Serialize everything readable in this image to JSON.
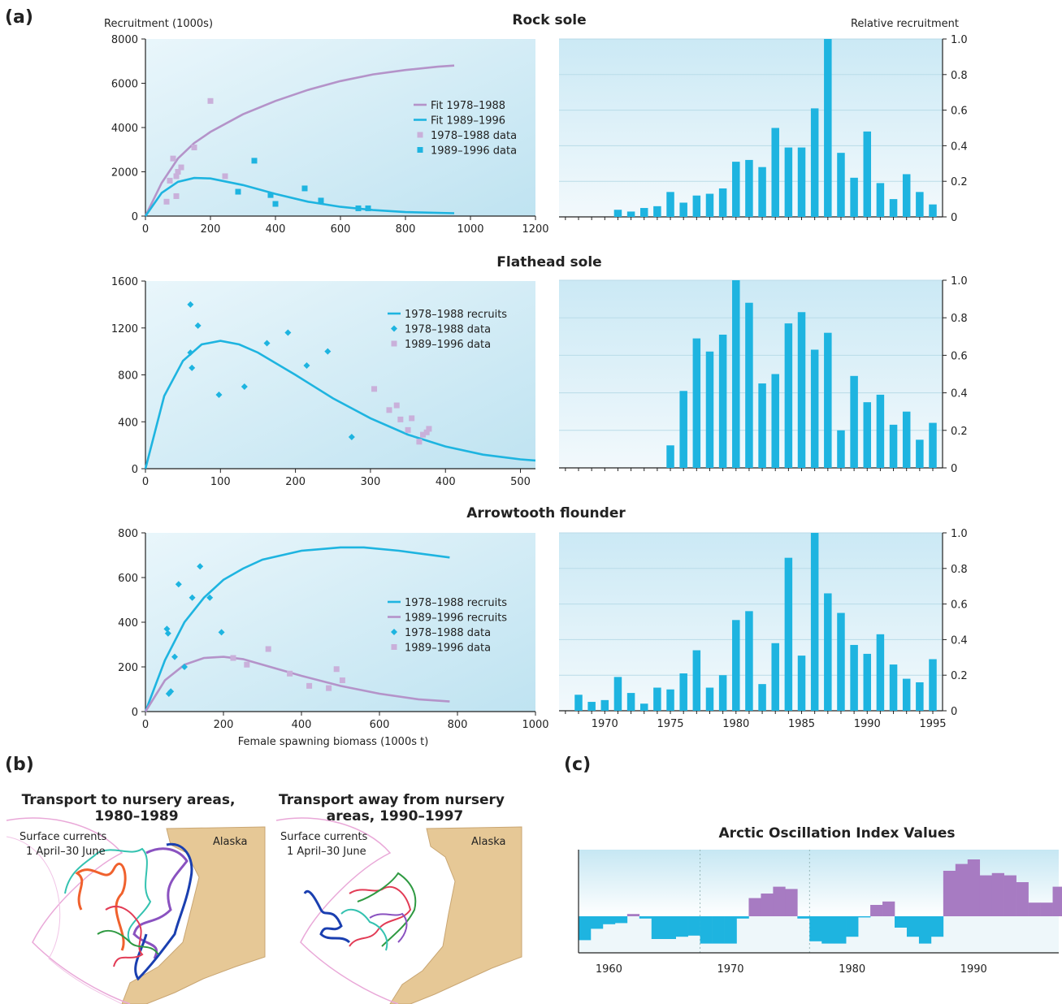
{
  "panels": {
    "a": "(a)",
    "b": "(b)",
    "c": "(c)"
  },
  "colors": {
    "cyan": "#1eb4e0",
    "purple": "#b493c9",
    "ao_purple": "#a77bc2",
    "land": "#e6c896",
    "sea_line": "#e9a8d8"
  },
  "chart_data": [
    {
      "id": "rock_scatter",
      "type": "scatter",
      "title": "Rock sole",
      "ylabel": "Recruitment (1000s)",
      "xlabel": "",
      "xlim": [
        0,
        1200
      ],
      "ylim": [
        0,
        8000
      ],
      "xticks": [
        0,
        200,
        400,
        600,
        800,
        1000,
        1200
      ],
      "yticks": [
        0,
        2000,
        4000,
        6000,
        8000
      ],
      "legend": [
        {
          "label": "Fit 1978–1988",
          "kind": "line",
          "color": "#b493c9"
        },
        {
          "label": "Fit 1989–1996",
          "kind": "line",
          "color": "#1eb4e0"
        },
        {
          "label": "1978–1988 data",
          "kind": "square",
          "color": "#c9b0da"
        },
        {
          "label": "1989–1996 data",
          "kind": "square",
          "color": "#1eb4e0"
        }
      ],
      "series": [
        {
          "kind": "line",
          "color": "#b493c9",
          "x": [
            0,
            50,
            100,
            150,
            200,
            300,
            400,
            500,
            600,
            700,
            800,
            900,
            950
          ],
          "y": [
            0,
            1500,
            2600,
            3300,
            3800,
            4600,
            5200,
            5700,
            6100,
            6400,
            6600,
            6750,
            6800
          ]
        },
        {
          "kind": "line",
          "color": "#1eb4e0",
          "x": [
            0,
            50,
            100,
            150,
            200,
            300,
            400,
            500,
            600,
            700,
            800,
            950
          ],
          "y": [
            0,
            1050,
            1550,
            1720,
            1700,
            1400,
            1000,
            650,
            420,
            270,
            180,
            130
          ]
        },
        {
          "kind": "square",
          "color": "#c9b0da",
          "x": [
            65,
            75,
            85,
            95,
            100,
            110,
            150,
            200,
            245,
            95
          ],
          "y": [
            650,
            1600,
            2600,
            1800,
            2000,
            2200,
            3100,
            5200,
            1800,
            900
          ]
        },
        {
          "kind": "square",
          "color": "#1eb4e0",
          "x": [
            285,
            335,
            385,
            400,
            490,
            540,
            655,
            685
          ],
          "y": [
            1100,
            2500,
            950,
            550,
            1250,
            700,
            350,
            350
          ]
        }
      ]
    },
    {
      "id": "rock_bars",
      "type": "bar",
      "ylabel": "Relative recruitment",
      "xlim": [
        1967,
        1995.5
      ],
      "ylim": [
        0,
        1.0
      ],
      "yticks": [
        0,
        0.2,
        0.4,
        0.6,
        0.8,
        1.0
      ],
      "yticklabels": [
        "0",
        "0.2",
        "0.4",
        "0.6",
        "0.8",
        "1.0"
      ],
      "x": [
        1967,
        1968,
        1969,
        1970,
        1971,
        1972,
        1973,
        1974,
        1975,
        1976,
        1977,
        1978,
        1979,
        1980,
        1981,
        1982,
        1983,
        1984,
        1985,
        1986,
        1987,
        1988,
        1989,
        1990,
        1991,
        1992,
        1993,
        1994,
        1995
      ],
      "values": [
        0,
        0,
        0,
        0,
        0.04,
        0.03,
        0.05,
        0.06,
        0.14,
        0.08,
        0.12,
        0.13,
        0.16,
        0.31,
        0.32,
        0.28,
        0.5,
        0.39,
        0.39,
        0.61,
        1.0,
        0.36,
        0.22,
        0.48,
        0.19,
        0.1,
        0.24,
        0.14,
        0.07
      ]
    },
    {
      "id": "flathead_scatter",
      "type": "scatter",
      "title": "Flathead sole",
      "xlim": [
        0,
        520
      ],
      "ylim": [
        0,
        1600
      ],
      "xticks": [
        0,
        100,
        200,
        300,
        400,
        500
      ],
      "yticks": [
        0,
        400,
        800,
        1200,
        1600
      ],
      "legend": [
        {
          "label": "1978–1988 recruits",
          "kind": "line",
          "color": "#1eb4e0"
        },
        {
          "label": "1978–1988 data",
          "kind": "diamond",
          "color": "#1eb4e0"
        },
        {
          "label": "1989–1996 data",
          "kind": "square",
          "color": "#c9b0da"
        }
      ],
      "series": [
        {
          "kind": "line",
          "color": "#1eb4e0",
          "x": [
            0,
            25,
            50,
            75,
            100,
            125,
            150,
            200,
            250,
            300,
            350,
            400,
            450,
            500,
            520
          ],
          "y": [
            0,
            620,
            920,
            1060,
            1090,
            1060,
            990,
            800,
            600,
            430,
            290,
            190,
            120,
            80,
            70
          ]
        },
        {
          "kind": "diamond",
          "color": "#1eb4e0",
          "x": [
            60,
            60,
            62,
            70,
            98,
            132,
            162,
            190,
            215,
            243,
            275
          ],
          "y": [
            1400,
            990,
            860,
            1220,
            630,
            700,
            1070,
            1160,
            880,
            1000,
            270
          ]
        },
        {
          "kind": "square",
          "color": "#c9b0da",
          "x": [
            305,
            325,
            335,
            340,
            350,
            355,
            365,
            370,
            375,
            378
          ],
          "y": [
            680,
            500,
            540,
            420,
            330,
            430,
            230,
            290,
            310,
            340
          ]
        }
      ]
    },
    {
      "id": "flathead_bars",
      "type": "bar",
      "xlim": [
        1967,
        1995.5
      ],
      "ylim": [
        0,
        1.0
      ],
      "yticks": [
        0,
        0.2,
        0.4,
        0.6,
        0.8,
        1.0
      ],
      "yticklabels": [
        "0",
        "0.2",
        "0.4",
        "0.6",
        "0.8",
        "1.0"
      ],
      "x": [
        1967,
        1968,
        1969,
        1970,
        1971,
        1972,
        1973,
        1974,
        1975,
        1976,
        1977,
        1978,
        1979,
        1980,
        1981,
        1982,
        1983,
        1984,
        1985,
        1986,
        1987,
        1988,
        1989,
        1990,
        1991,
        1992,
        1993,
        1994,
        1995
      ],
      "values": [
        0,
        0,
        0,
        0,
        0,
        0,
        0,
        0,
        0.12,
        0.41,
        0.69,
        0.62,
        0.71,
        1.0,
        0.88,
        0.45,
        0.5,
        0.77,
        0.83,
        0.63,
        0.72,
        0.2,
        0.49,
        0.35,
        0.39,
        0.23,
        0.3,
        0.15,
        0.24
      ]
    },
    {
      "id": "arrowtooth_scatter",
      "type": "scatter",
      "title": "Arrowtooth flounder",
      "xlabel": "Female spawning biomass (1000s t)",
      "xlim": [
        0,
        1000
      ],
      "ylim": [
        0,
        800
      ],
      "xticks": [
        0,
        200,
        400,
        600,
        800,
        1000
      ],
      "yticks": [
        0,
        200,
        400,
        600,
        800
      ],
      "legend": [
        {
          "label": "1978–1988 recruits",
          "kind": "line",
          "color": "#1eb4e0"
        },
        {
          "label": "1989–1996 recruits",
          "kind": "line",
          "color": "#b493c9"
        },
        {
          "label": "1978–1988 data",
          "kind": "diamond",
          "color": "#1eb4e0"
        },
        {
          "label": "1989–1996 data",
          "kind": "square",
          "color": "#c9b0da"
        }
      ],
      "series": [
        {
          "kind": "line",
          "color": "#1eb4e0",
          "x": [
            0,
            50,
            100,
            150,
            200,
            250,
            300,
            400,
            500,
            560,
            650,
            780
          ],
          "y": [
            0,
            230,
            400,
            510,
            590,
            640,
            680,
            720,
            735,
            735,
            720,
            690
          ]
        },
        {
          "kind": "line",
          "color": "#b493c9",
          "x": [
            0,
            50,
            100,
            150,
            200,
            250,
            300,
            400,
            500,
            600,
            700,
            780
          ],
          "y": [
            0,
            140,
            210,
            240,
            245,
            235,
            210,
            160,
            115,
            80,
            55,
            45
          ]
        },
        {
          "kind": "diamond",
          "color": "#1eb4e0",
          "x": [
            55,
            58,
            60,
            65,
            75,
            85,
            100,
            120,
            140,
            165,
            195
          ],
          "y": [
            370,
            350,
            80,
            90,
            245,
            570,
            200,
            510,
            650,
            510,
            355
          ]
        },
        {
          "kind": "square",
          "color": "#c9b0da",
          "x": [
            225,
            260,
            315,
            370,
            420,
            470,
            490,
            505
          ],
          "y": [
            240,
            210,
            280,
            170,
            115,
            105,
            190,
            140
          ]
        }
      ]
    },
    {
      "id": "arrowtooth_bars",
      "type": "bar",
      "xlim": [
        1967,
        1995.5
      ],
      "ylim": [
        0,
        1.0
      ],
      "yticks": [
        0,
        0.2,
        0.4,
        0.6,
        0.8,
        1.0
      ],
      "yticklabels": [
        "0",
        "0.2",
        "0.4",
        "0.6",
        "0.8",
        "1.0"
      ],
      "xticks": [
        1970,
        1975,
        1980,
        1985,
        1990,
        1995
      ],
      "x": [
        1967,
        1968,
        1969,
        1970,
        1971,
        1972,
        1973,
        1974,
        1975,
        1976,
        1977,
        1978,
        1979,
        1980,
        1981,
        1982,
        1983,
        1984,
        1985,
        1986,
        1987,
        1988,
        1989,
        1990,
        1991,
        1992,
        1993,
        1994,
        1995
      ],
      "values": [
        0,
        0.09,
        0.05,
        0.06,
        0.19,
        0.1,
        0.04,
        0.13,
        0.12,
        0.21,
        0.34,
        0.13,
        0.2,
        0.51,
        0.56,
        0.15,
        0.38,
        0.86,
        0.31,
        1.0,
        0.66,
        0.55,
        0.37,
        0.32,
        0.43,
        0.26,
        0.18,
        0.16,
        0.29
      ]
    },
    {
      "id": "ao_index",
      "type": "bar",
      "title": "Arctic Oscillation Index Values",
      "xlim": [
        1958,
        1997.5
      ],
      "xticks": [
        1960,
        1970,
        1980,
        1990
      ],
      "ylim": [
        -1.3,
        2.7
      ],
      "x": [
        1958,
        1959,
        1960,
        1961,
        1962,
        1963,
        1964,
        1965,
        1966,
        1967,
        1968,
        1969,
        1970,
        1971,
        1972,
        1973,
        1974,
        1975,
        1976,
        1977,
        1978,
        1979,
        1980,
        1981,
        1982,
        1983,
        1984,
        1985,
        1986,
        1987,
        1988,
        1989,
        1990,
        1991,
        1992,
        1993,
        1994,
        1995,
        1996,
        1997
      ],
      "values": [
        -1.05,
        -0.55,
        -0.35,
        -0.3,
        0.1,
        -0.1,
        -1.0,
        -1.0,
        -0.9,
        -0.85,
        -1.2,
        -1.2,
        -1.2,
        -0.1,
        0.8,
        1.0,
        1.3,
        1.2,
        -0.1,
        -1.1,
        -1.2,
        -1.2,
        -0.9,
        -0.05,
        0.5,
        0.65,
        -0.5,
        -0.9,
        -1.2,
        -0.9,
        2.0,
        2.3,
        2.5,
        1.8,
        1.9,
        1.8,
        1.5,
        0.6,
        0.6,
        1.3
      ]
    }
  ],
  "maps": {
    "left_title_1": "Transport to nursery areas,",
    "left_title_2": "1980–1989",
    "right_title_1": "Transport away from nursery",
    "right_title_2": "areas, 1990–1997",
    "sub_1": "Surface currents",
    "sub_2": "1 April–30 June",
    "place": "Alaska"
  }
}
